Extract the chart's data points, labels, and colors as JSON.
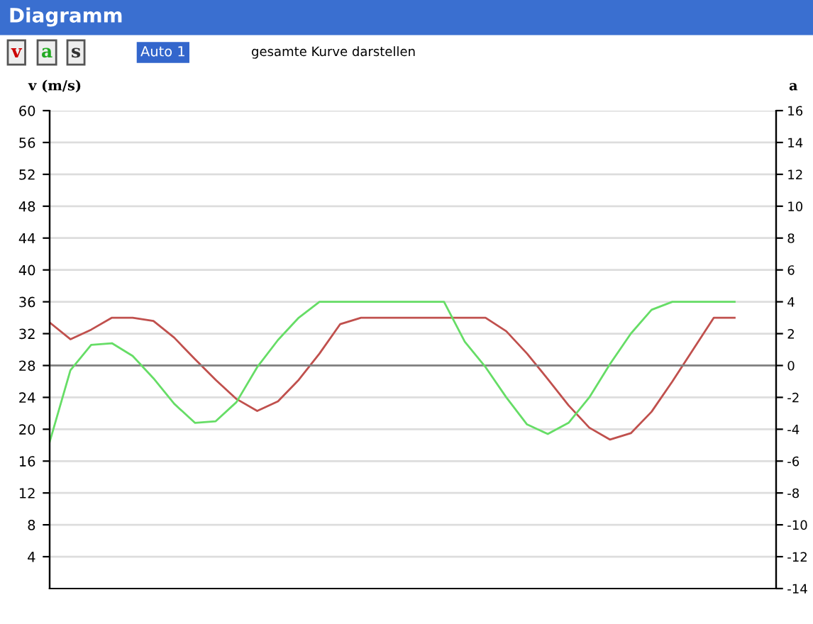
{
  "chart_data": {
    "type": "line",
    "title": "Diagramm",
    "annotations": [
      "v",
      "a",
      "s",
      "Auto 1",
      "gesamte Kurve darstellen"
    ],
    "ylabel": "v (m/s)",
    "y2label": "a",
    "categories": [
      null,
      null,
      null,
      null,
      null,
      null,
      null,
      null,
      null,
      null,
      null,
      null,
      null,
      null,
      null,
      null,
      null,
      null,
      null,
      null,
      null,
      null,
      null,
      null,
      null,
      null,
      null,
      null,
      null,
      null,
      null,
      null,
      null,
      null,
      null,
      null
    ],
    "series": [
      {
        "color": "#c0504d",
        "values": [
          33.4,
          31.3,
          32.5,
          34,
          34,
          33.6,
          31.5,
          28.8,
          26.2,
          23.8,
          22.3,
          23.5,
          26.2,
          29.5,
          33.2,
          34,
          34,
          34,
          34,
          34,
          34,
          34,
          32.3,
          29.5,
          26.3,
          23,
          20.2,
          18.7,
          19.5,
          22.2,
          26,
          30,
          34,
          34,
          null,
          null
        ]
      },
      {
        "color": "#66dd66",
        "axis": "y2",
        "values": [
          -4.8,
          -0.3,
          1.3,
          1.4,
          0.6,
          -0.8,
          -2.4,
          -3.6,
          -3.5,
          -2.3,
          -0.1,
          1.6,
          3.0,
          4,
          4,
          4,
          4,
          4,
          4,
          4,
          1.5,
          -0.1,
          -2.0,
          -3.7,
          -4.3,
          -3.6,
          -2.0,
          0.1,
          2.0,
          3.5,
          4,
          4,
          4,
          4,
          null,
          null
        ]
      }
    ],
    "ylim": [
      0,
      60
    ],
    "yticks": [
      4,
      8,
      12,
      16,
      20,
      24,
      28,
      32,
      36,
      40,
      44,
      48,
      52,
      56,
      60
    ],
    "y2lim": [
      -14,
      16
    ],
    "y2ticks": [
      -14,
      -12,
      -10,
      -8,
      -6,
      -4,
      -2,
      0,
      2,
      4,
      6,
      8,
      10,
      12,
      14,
      16
    ],
    "ref_lines": [
      {
        "axis": "y2",
        "value": 0,
        "color": "#808080"
      }
    ],
    "grid": "y",
    "tick_labels": "y"
  }
}
